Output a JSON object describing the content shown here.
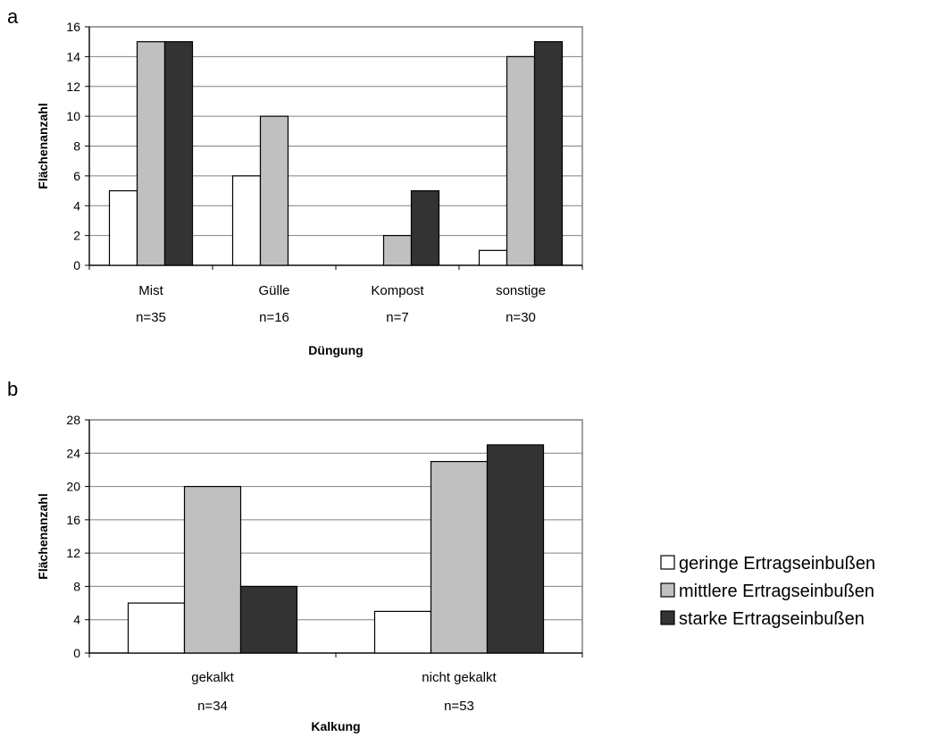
{
  "legend": {
    "entries": [
      {
        "label": "geringe Ertragseinbußen",
        "color": "#ffffff"
      },
      {
        "label": "mittlere Ertragseinbußen",
        "color": "#c0c0c0"
      },
      {
        "label": "starke Ertragseinbußen",
        "color": "#333333"
      }
    ],
    "placement": "right"
  },
  "chart_data": [
    {
      "panel": "a",
      "type": "bar",
      "categories": [
        "Mist",
        "Gülle",
        "Kompost",
        "sonstige"
      ],
      "sample_sizes": [
        "n=35",
        "n=16",
        "n=7",
        "n=30"
      ],
      "series": [
        {
          "name": "geringe Ertragseinbußen",
          "values": [
            5,
            6,
            0,
            1
          ]
        },
        {
          "name": "mittlere Ertragseinbußen",
          "values": [
            15,
            10,
            2,
            14
          ]
        },
        {
          "name": "starke Ertragseinbußen",
          "values": [
            15,
            0,
            5,
            15
          ]
        }
      ],
      "xlabel": "Düngung",
      "ylabel": "Flächenanzahl",
      "ylim": [
        0,
        16
      ],
      "yticks": [
        0,
        2,
        4,
        6,
        8,
        10,
        12,
        14,
        16
      ],
      "grid": true
    },
    {
      "panel": "b",
      "type": "bar",
      "categories": [
        "gekalkt",
        "nicht gekalkt"
      ],
      "sample_sizes": [
        "n=34",
        "n=53"
      ],
      "series": [
        {
          "name": "geringe Ertragseinbußen",
          "values": [
            6,
            5
          ]
        },
        {
          "name": "mittlere Ertragseinbußen",
          "values": [
            20,
            23
          ]
        },
        {
          "name": "starke Ertragseinbußen",
          "values": [
            8,
            25
          ]
        }
      ],
      "xlabel": "Kalkung",
      "ylabel": "Flächenanzahl",
      "ylim": [
        0,
        28
      ],
      "yticks": [
        0,
        4,
        8,
        12,
        16,
        20,
        24,
        28
      ],
      "grid": true
    }
  ]
}
